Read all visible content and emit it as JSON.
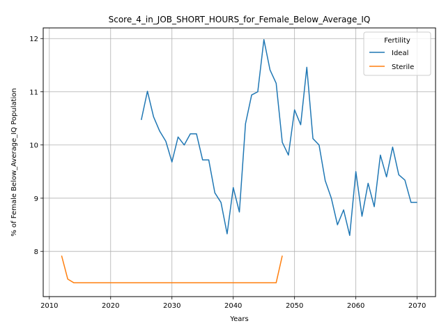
{
  "chart_data": {
    "type": "line",
    "title": "Score_4_in_JOB_SHORT_HOURS_for_Female_Below_Average_IQ",
    "xlabel": "Years",
    "ylabel": "% of Female Below_Average_IQ Population",
    "xlim": [
      2009,
      2073
    ],
    "ylim": [
      7.15,
      12.2
    ],
    "xticks": [
      2010,
      2020,
      2030,
      2040,
      2050,
      2060,
      2070
    ],
    "yticks": [
      8,
      9,
      10,
      11,
      12
    ],
    "grid": true,
    "legend": {
      "title": "Fertility",
      "placement": "top-right"
    },
    "series": [
      {
        "name": "Ideal",
        "color": "#1f77b4",
        "x": [
          2025,
          2026,
          2027,
          2028,
          2029,
          2030,
          2031,
          2032,
          2033,
          2034,
          2035,
          2036,
          2037,
          2038,
          2039,
          2040,
          2041,
          2042,
          2043,
          2044,
          2045,
          2046,
          2047,
          2048,
          2049,
          2050,
          2051,
          2052,
          2053,
          2054,
          2055,
          2056,
          2057,
          2058,
          2059,
          2060,
          2061,
          2062,
          2063,
          2064,
          2065,
          2066,
          2067,
          2068,
          2069,
          2070
        ],
        "y": [
          10.47,
          11.01,
          10.53,
          10.26,
          10.07,
          9.68,
          10.15,
          10.0,
          10.21,
          10.21,
          9.72,
          9.72,
          9.1,
          8.92,
          8.33,
          9.2,
          8.74,
          10.4,
          10.94,
          11.0,
          11.98,
          11.41,
          11.16,
          10.05,
          9.81,
          10.66,
          10.38,
          11.46,
          10.12,
          10.0,
          9.33,
          9.0,
          8.5,
          8.78,
          8.3,
          9.5,
          8.66,
          9.28,
          8.84,
          9.81,
          9.4,
          9.96,
          9.44,
          9.34,
          8.92,
          8.92
        ]
      },
      {
        "name": "Sterile",
        "color": "#ff7f0e",
        "x": [
          2012,
          2013,
          2014,
          2015,
          2016,
          2017,
          2018,
          2019,
          2020,
          2021,
          2022,
          2023,
          2024,
          2025,
          2026,
          2027,
          2028,
          2029,
          2030,
          2031,
          2032,
          2033,
          2034,
          2035,
          2036,
          2037,
          2038,
          2039,
          2040,
          2041,
          2042,
          2043,
          2044,
          2045,
          2046,
          2047,
          2048
        ],
        "y": [
          7.92,
          7.48,
          7.41,
          7.41,
          7.41,
          7.41,
          7.41,
          7.41,
          7.41,
          7.41,
          7.41,
          7.41,
          7.41,
          7.41,
          7.41,
          7.41,
          7.41,
          7.41,
          7.41,
          7.41,
          7.41,
          7.41,
          7.41,
          7.41,
          7.41,
          7.41,
          7.41,
          7.41,
          7.41,
          7.41,
          7.41,
          7.41,
          7.41,
          7.41,
          7.41,
          7.41,
          7.92
        ]
      }
    ]
  }
}
